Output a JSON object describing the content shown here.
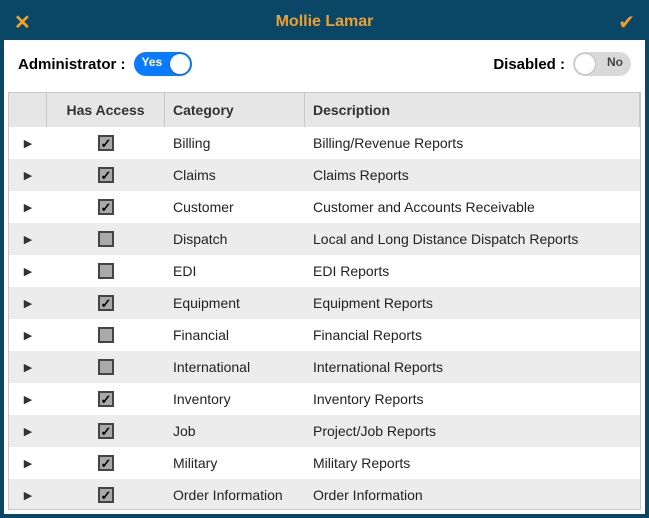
{
  "colors": {
    "frame": "#0a4666",
    "accent": "#f0a02a",
    "toggle_on": "#0a7bff",
    "toggle_off": "#d9d9d9",
    "row_alt": "#ececec",
    "border": "#c8c8c8"
  },
  "header": {
    "title": "Mollie Lamar"
  },
  "switches": {
    "admin": {
      "label": "Administrator :",
      "on": true,
      "text": "Yes"
    },
    "disabled": {
      "label": "Disabled :",
      "on": false,
      "text": "No"
    }
  },
  "table": {
    "columns": {
      "access": "Has Access",
      "category": "Category",
      "description": "Description"
    },
    "rows": [
      {
        "checked": true,
        "category": "Billing",
        "description": "Billing/Revenue Reports"
      },
      {
        "checked": true,
        "category": "Claims",
        "description": "Claims Reports"
      },
      {
        "checked": true,
        "category": "Customer",
        "description": "Customer and Accounts Receivable"
      },
      {
        "checked": false,
        "category": "Dispatch",
        "description": "Local and Long Distance Dispatch Reports"
      },
      {
        "checked": false,
        "category": "EDI",
        "description": "EDI Reports"
      },
      {
        "checked": true,
        "category": "Equipment",
        "description": "Equipment Reports"
      },
      {
        "checked": false,
        "category": "Financial",
        "description": "Financial Reports"
      },
      {
        "checked": false,
        "category": "International",
        "description": "International Reports"
      },
      {
        "checked": true,
        "category": "Inventory",
        "description": "Inventory Reports"
      },
      {
        "checked": true,
        "category": "Job",
        "description": "Project/Job Reports"
      },
      {
        "checked": true,
        "category": "Military",
        "description": "Military Reports"
      },
      {
        "checked": true,
        "category": "Order Information",
        "description": "Order Information"
      }
    ]
  }
}
